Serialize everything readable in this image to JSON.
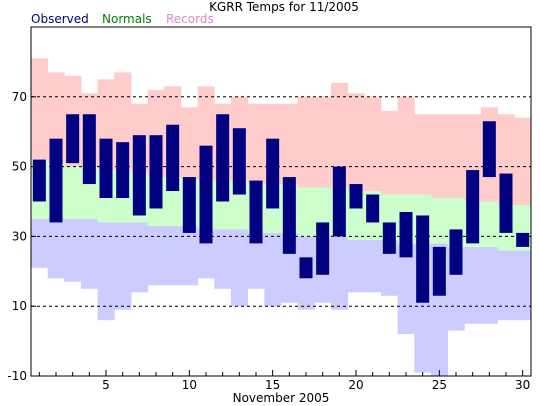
{
  "chart_data": {
    "type": "bar",
    "title": "KGRR Temps for 11/2005",
    "xlabel": "November 2005",
    "ylabel": "",
    "x": [
      1,
      2,
      3,
      4,
      5,
      6,
      7,
      8,
      9,
      10,
      11,
      12,
      13,
      14,
      15,
      16,
      17,
      18,
      19,
      20,
      21,
      22,
      23,
      24,
      25,
      26,
      27,
      28,
      29,
      30
    ],
    "xlim": [
      0.5,
      30.5
    ],
    "ylim": [
      -10,
      90
    ],
    "x_ticks": [
      "5",
      "10",
      "15",
      "20",
      "25",
      "30"
    ],
    "y_ticks": [
      "-10",
      "10",
      "30",
      "50",
      "70"
    ],
    "grid": "dashed horizontal lines at 10, 30, 50, 70",
    "legend": {
      "placement": "top-left",
      "entries": [
        {
          "label": "Observed",
          "color": "#000080"
        },
        {
          "label": "Normals",
          "color": "#008000"
        },
        {
          "label": "Records",
          "color": "#dd88cc"
        }
      ]
    },
    "series": [
      {
        "name": "Records",
        "high": [
          81,
          77,
          76,
          71,
          75,
          77,
          68,
          72,
          73,
          67,
          73,
          68,
          70,
          68,
          68,
          68,
          70,
          70,
          74,
          71,
          70,
          66,
          70,
          65,
          65,
          65,
          65,
          67,
          65,
          64
        ],
        "low": [
          21,
          18,
          17,
          15,
          6,
          9,
          14,
          16,
          16,
          16,
          18,
          15,
          10,
          15,
          10,
          11,
          9,
          11,
          9,
          14,
          14,
          13,
          2,
          -9,
          -10,
          3,
          5,
          5,
          6,
          6
        ]
      },
      {
        "name": "Normals",
        "high": [
          52,
          51,
          50,
          50,
          49,
          49,
          48,
          47,
          47,
          46,
          46,
          46,
          46,
          45,
          45,
          45,
          44,
          44,
          44,
          43,
          43,
          42,
          42,
          42,
          41,
          41,
          40,
          40,
          39,
          39
        ],
        "low": [
          35,
          35,
          35,
          35,
          34,
          34,
          34,
          33,
          33,
          33,
          32,
          32,
          32,
          31,
          31,
          31,
          30,
          30,
          30,
          29,
          29,
          29,
          28,
          28,
          28,
          27,
          27,
          27,
          26,
          26
        ]
      },
      {
        "name": "Observed",
        "high": [
          52,
          58,
          65,
          65,
          58,
          57,
          59,
          59,
          62,
          47,
          56,
          65,
          61,
          46,
          58,
          47,
          24,
          34,
          50,
          45,
          42,
          34,
          37,
          36,
          27,
          32,
          49,
          63,
          48,
          31
        ],
        "low": [
          40,
          34,
          51,
          45,
          41,
          41,
          36,
          38,
          43,
          31,
          28,
          40,
          42,
          28,
          38,
          25,
          18,
          19,
          30,
          38,
          34,
          25,
          24,
          11,
          13,
          19,
          28,
          47,
          31,
          27
        ]
      }
    ],
    "colors": {
      "records": "#ffcccc",
      "normals": "#ccffcc",
      "record_lows": "#ccccff",
      "observed": "#000080",
      "grid": "#000000"
    }
  }
}
